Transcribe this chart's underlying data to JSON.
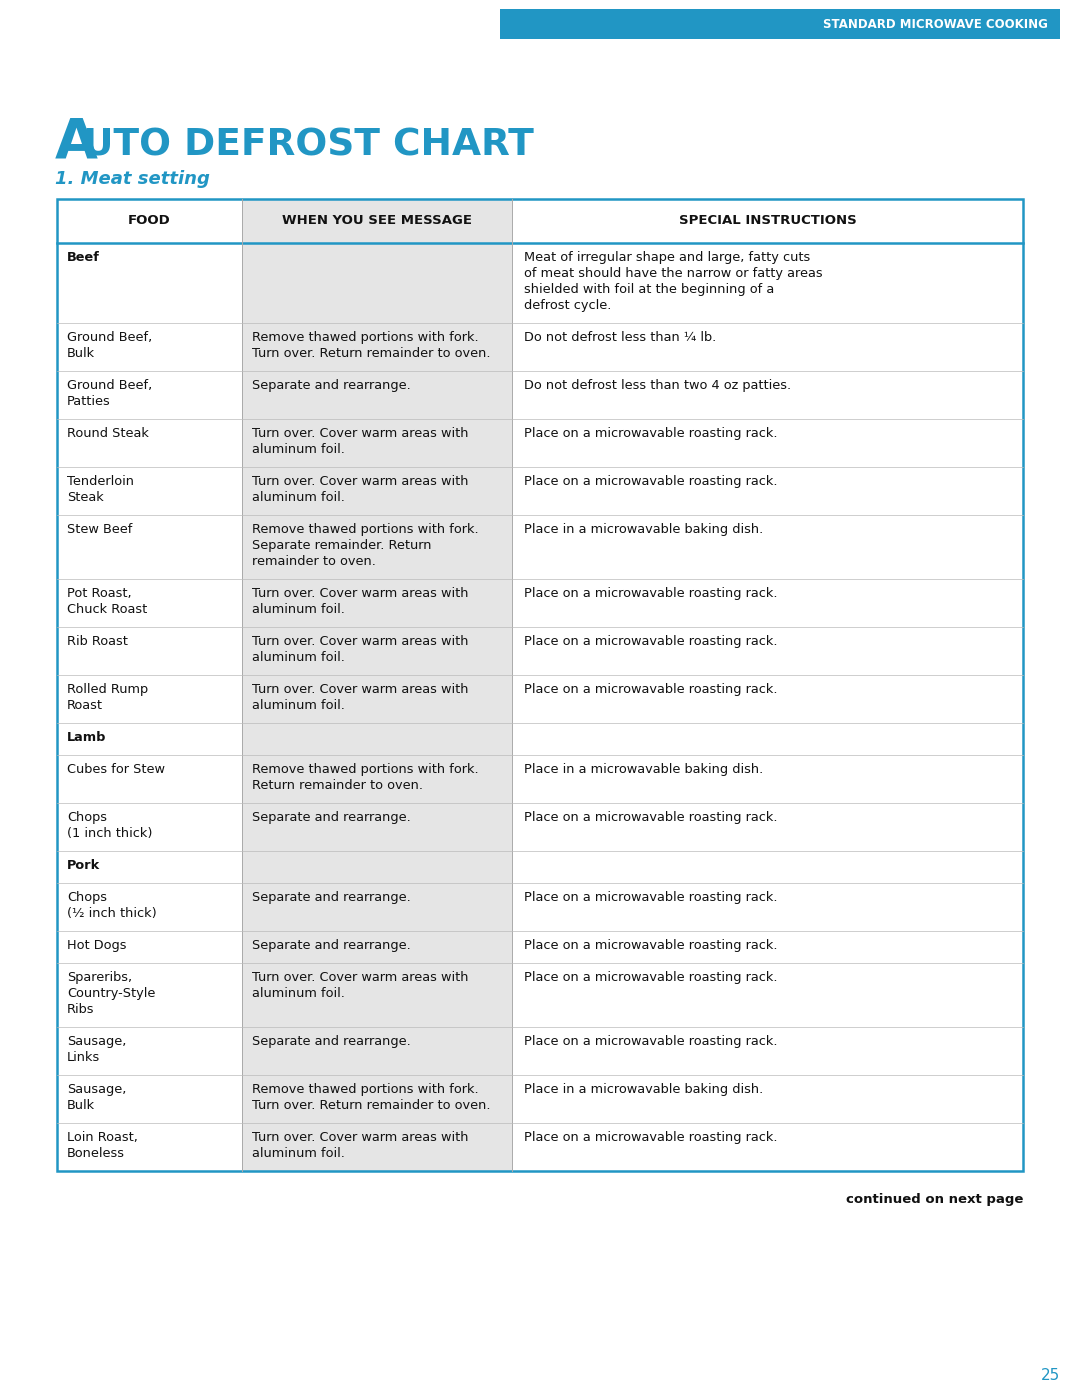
{
  "page_bg": "#ffffff",
  "header_bg": "#2196c4",
  "header_text": "STANDARD MICROWAVE COOKING",
  "header_text_color": "#ffffff",
  "title_line1": "A",
  "title_line2": "UTO DEFROST CHART",
  "title_color": "#2196c4",
  "subtitle": "1. Meat setting",
  "subtitle_color": "#2196c4",
  "col_headers": [
    "FOOD",
    "WHEN YOU SEE MESSAGE",
    "SPECIAL INSTRUCTIONS"
  ],
  "col2_bg": "#e5e5e5",
  "table_border_color": "#2196c4",
  "footer_text": "continued on next page",
  "page_number": "25",
  "rows": [
    {
      "food": "Beef",
      "bold": true,
      "message": "",
      "instructions": "Meat of irregular shape and large, fatty cuts\nof meat should have the narrow or fatty areas\nshielded with foil at the beginning of a\ndefrost cycle."
    },
    {
      "food": "Ground Beef,\nBulk",
      "bold": false,
      "message": "Remove thawed portions with fork.\nTurn over. Return remainder to oven.",
      "instructions": "Do not defrost less than ¼ lb."
    },
    {
      "food": "Ground Beef,\nPatties",
      "bold": false,
      "message": "Separate and rearrange.",
      "instructions": "Do not defrost less than two 4 oz patties."
    },
    {
      "food": "Round Steak",
      "bold": false,
      "message": "Turn over. Cover warm areas with\naluminum foil.",
      "instructions": "Place on a microwavable roasting rack."
    },
    {
      "food": "Tenderloin\nSteak",
      "bold": false,
      "message": "Turn over. Cover warm areas with\naluminum foil.",
      "instructions": "Place on a microwavable roasting rack."
    },
    {
      "food": "Stew Beef",
      "bold": false,
      "message": "Remove thawed portions with fork.\nSeparate remainder. Return\nremainder to oven.",
      "instructions": "Place in a microwavable baking dish."
    },
    {
      "food": "Pot Roast,\nChuck Roast",
      "bold": false,
      "message": "Turn over. Cover warm areas with\naluminum foil.",
      "instructions": "Place on a microwavable roasting rack."
    },
    {
      "food": "Rib Roast",
      "bold": false,
      "message": "Turn over. Cover warm areas with\naluminum foil.",
      "instructions": "Place on a microwavable roasting rack."
    },
    {
      "food": "Rolled Rump\nRoast",
      "bold": false,
      "message": "Turn over. Cover warm areas with\naluminum foil.",
      "instructions": "Place on a microwavable roasting rack."
    },
    {
      "food": "Lamb",
      "bold": true,
      "message": "",
      "instructions": ""
    },
    {
      "food": "Cubes for Stew",
      "bold": false,
      "message": "Remove thawed portions with fork.\nReturn remainder to oven.",
      "instructions": "Place in a microwavable baking dish."
    },
    {
      "food": "Chops\n(1 inch thick)",
      "bold": false,
      "message": "Separate and rearrange.",
      "instructions": "Place on a microwavable roasting rack."
    },
    {
      "food": "Pork",
      "bold": true,
      "message": "",
      "instructions": ""
    },
    {
      "food": "Chops\n(½ inch thick)",
      "bold": false,
      "message": "Separate and rearrange.",
      "instructions": "Place on a microwavable roasting rack."
    },
    {
      "food": "Hot Dogs",
      "bold": false,
      "message": "Separate and rearrange.",
      "instructions": "Place on a microwavable roasting rack."
    },
    {
      "food": "Spareribs,\nCountry-Style\nRibs",
      "bold": false,
      "message": "Turn over. Cover warm areas with\naluminum foil.",
      "instructions": "Place on a microwavable roasting rack."
    },
    {
      "food": "Sausage,\nLinks",
      "bold": false,
      "message": "Separate and rearrange.",
      "instructions": "Place on a microwavable roasting rack."
    },
    {
      "food": "Sausage,\nBulk",
      "bold": false,
      "message": "Remove thawed portions with fork.\nTurn over. Return remainder to oven.",
      "instructions": "Place in a microwavable baking dish."
    },
    {
      "food": "Loin Roast,\nBoneless",
      "bold": false,
      "message": "Turn over. Cover warm areas with\naluminum foil.",
      "instructions": "Place on a microwavable roasting rack."
    }
  ]
}
